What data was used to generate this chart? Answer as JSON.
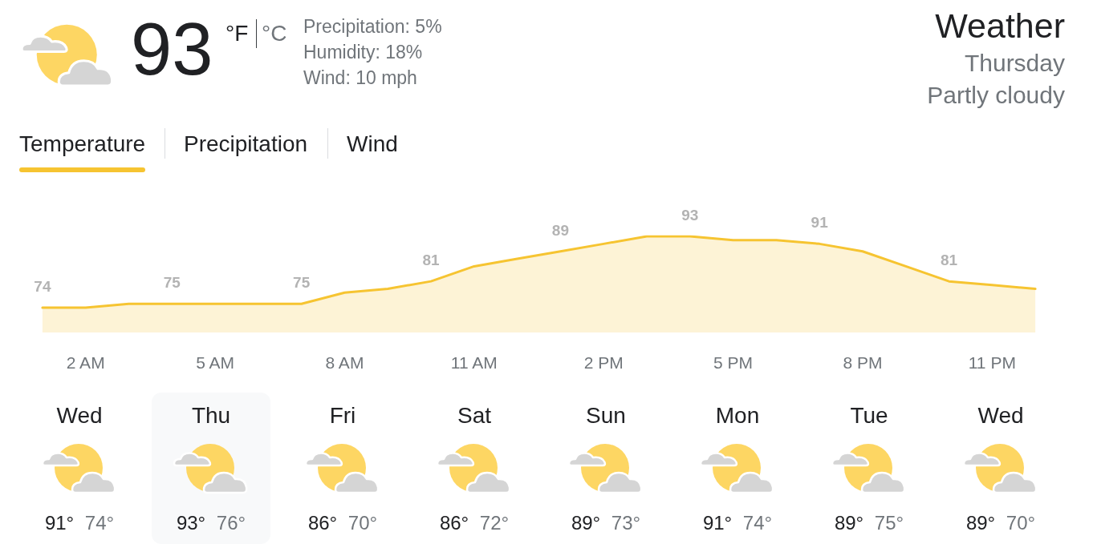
{
  "chart_data": [
    {
      "type": "other",
      "title": "Weather",
      "subtitle": "Thursday",
      "annotations": [
        "93",
        "°F",
        "°C",
        "Precipitation: 5%",
        "Humidity: 18%",
        "Wind: 10 mph",
        "Partly cloudy",
        "Temperature",
        "Precipitation",
        "Wind"
      ]
    },
    {
      "type": "area",
      "categories": [
        null,
        "2 AM",
        null,
        null,
        "5 AM",
        null,
        null,
        "8 AM",
        null,
        null,
        "11 AM",
        null,
        null,
        "2 PM",
        null,
        null,
        "5 PM",
        null,
        null,
        "8 PM",
        null,
        null,
        "11 PM",
        null
      ],
      "values": [
        74,
        74,
        75,
        75,
        75,
        75,
        75,
        78,
        79,
        81,
        85,
        87,
        89,
        91,
        93,
        93,
        92,
        92,
        91,
        89,
        85,
        81,
        80,
        79
      ],
      "value_labels": [
        "74",
        null,
        null,
        "75",
        null,
        null,
        "75",
        null,
        null,
        "81",
        null,
        null,
        "89",
        null,
        null,
        "93",
        null,
        null,
        "91",
        null,
        null,
        "81",
        null,
        null
      ],
      "color": "#f6c431",
      "marker": "none",
      "tick_labels": "x"
    },
    {
      "type": "other",
      "categories": [
        "Wed",
        "Thu",
        "Fri",
        "Sat",
        "Sun",
        "Mon",
        "Tue",
        "Wed"
      ],
      "annotations": [
        "91° 74°",
        "93° 76°",
        "86° 70°",
        "86° 72°",
        "89° 73°",
        "91° 74°",
        "89° 75°",
        "89° 70°"
      ]
    }
  ]
}
